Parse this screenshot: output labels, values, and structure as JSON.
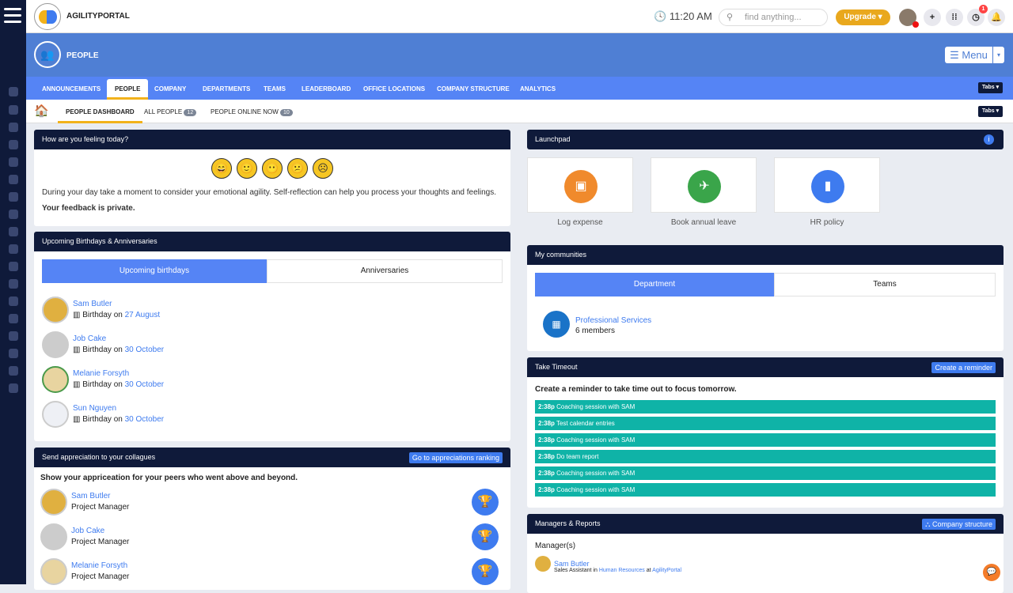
{
  "app": {
    "brand": "AGILITYPORTAL",
    "time": "11:20 AM",
    "search_placeholder": "find anything...",
    "upgrade": "Upgrade ▾",
    "notification_count": "1"
  },
  "page": {
    "title": "PEOPLE",
    "menu": "☰ Menu"
  },
  "tabs": [
    "ANNOUNCEMENTS",
    "PEOPLE",
    "COMPANY",
    "DEPARTMENTS",
    "TEAMS",
    "LEADERBOARD",
    "OFFICE LOCATIONS",
    "COMPANY STRUCTURE",
    "ANALYTICS"
  ],
  "tabs_button": "Tabs ▾",
  "subtabs": [
    {
      "label": "PEOPLE DASHBOARD"
    },
    {
      "label": "ALL PEOPLE",
      "count": "12"
    },
    {
      "label": "PEOPLE ONLINE NOW",
      "count": "10"
    }
  ],
  "feeling": {
    "title": "How are you feeling today?",
    "faces": [
      "😄",
      "🙂",
      "😶",
      "😕",
      "☹"
    ],
    "text": "During your day take a moment to consider your emotional agility. Self-reflection can help you process your thoughts and feelings.",
    "private": "Your feedback is private."
  },
  "birthdays": {
    "title": "Upcoming Birthdays & Anniversaries",
    "tabs": [
      "Upcoming birthdays",
      "Anniversaries"
    ],
    "prefix": "Birthday on",
    "people": [
      {
        "name": "Sam Butler",
        "date": "27 August"
      },
      {
        "name": "Job Cake",
        "date": "30 October"
      },
      {
        "name": "Melanie Forsyth",
        "date": "30 October"
      },
      {
        "name": "Sun Nguyen",
        "date": "30 October"
      }
    ]
  },
  "appreciation": {
    "title": "Send appreciation to your collagues",
    "button": "Go to appreciations ranking",
    "intro": "Show your appriceation for your peers who went above and beyond.",
    "people": [
      {
        "name": "Sam Butler",
        "role": "Project Manager"
      },
      {
        "name": "Job Cake",
        "role": "Project Manager"
      },
      {
        "name": "Melanie Forsyth",
        "role": "Project Manager"
      }
    ]
  },
  "launchpad": {
    "title": "Launchpad",
    "items": [
      {
        "label": "Log expense",
        "color": "#f08a2c",
        "icon": "money-icon"
      },
      {
        "label": "Book annual leave",
        "color": "#3aa54a",
        "icon": "plane-icon"
      },
      {
        "label": "HR policy",
        "color": "#3e7bef",
        "icon": "file-icon"
      }
    ]
  },
  "communities": {
    "title": "My communities",
    "tabs": [
      "Department",
      "Teams"
    ],
    "item": {
      "name": "Professional Services",
      "members": "6 members"
    }
  },
  "timeout": {
    "title": "Take Timeout",
    "button": "Create a reminder",
    "intro": "Create a reminder to take time out to focus tomorrow.",
    "reminders": [
      {
        "time": "2:38p",
        "text": "Coaching session with SAM"
      },
      {
        "time": "2:38p",
        "text": "Test calendar entries"
      },
      {
        "time": "2:38p",
        "text": "Coaching session with SAM"
      },
      {
        "time": "2:38p",
        "text": "Do team report"
      },
      {
        "time": "2:38p",
        "text": "Coaching session with SAM"
      },
      {
        "time": "2:38p",
        "text": "Coaching session with SAM"
      }
    ]
  },
  "managers": {
    "title": "Managers & Reports",
    "button": "Company structure",
    "label": "Manager(s)",
    "name": "Sam Butler",
    "role": "Sales Assistant",
    "in": "in",
    "dept": "Human Resources",
    "at": "at",
    "company": "AgilityPortal"
  }
}
